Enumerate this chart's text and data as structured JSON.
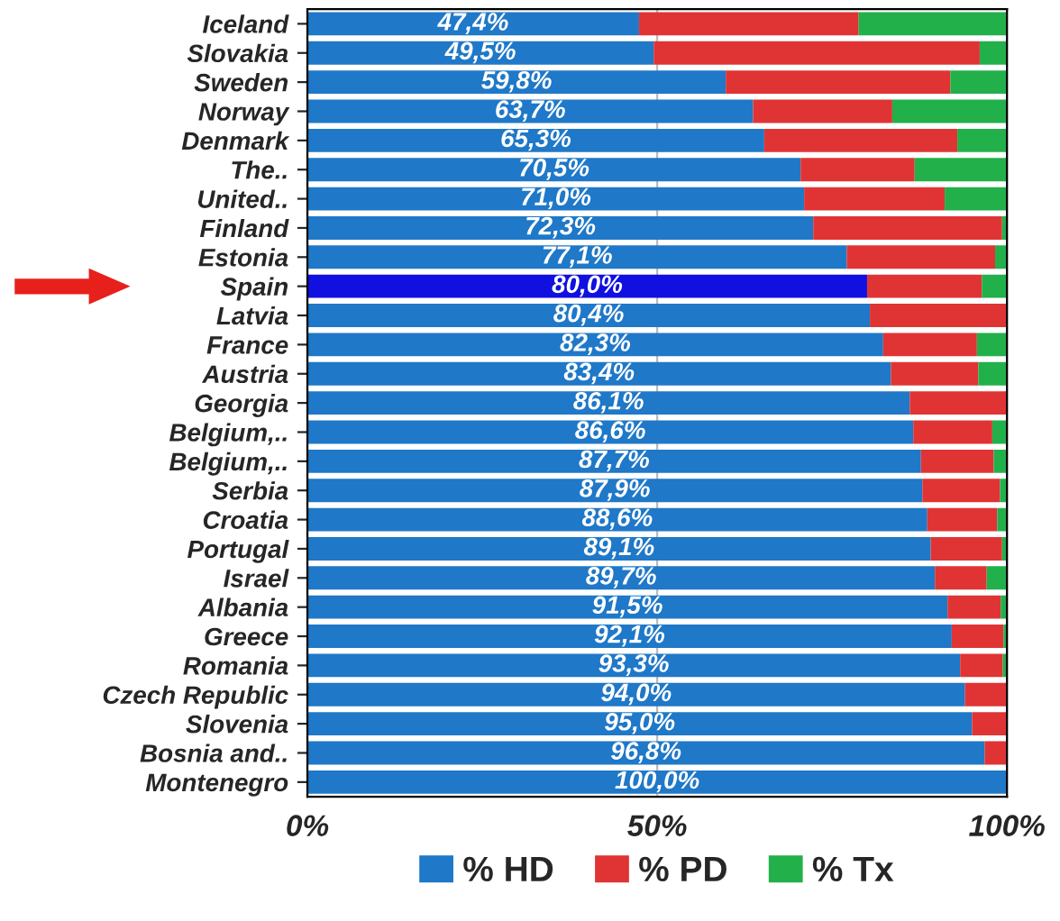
{
  "chart_data": {
    "type": "bar",
    "orientation": "horizontal",
    "stacked": true,
    "categories": [
      "Iceland",
      "Slovakia",
      "Sweden",
      "Norway",
      "Denmark",
      "The..",
      "United..",
      "Finland",
      "Estonia",
      "Spain",
      "Latvia",
      "France",
      "Austria",
      "Georgia",
      "Belgium,..",
      "Belgium,..",
      "Serbia",
      "Croatia",
      "Portugal",
      "Israel",
      "Albania",
      "Greece",
      "Romania",
      "Czech Republic",
      "Slovenia",
      "Bosnia and..",
      "Montenegro"
    ],
    "series": [
      {
        "name": "% HD",
        "color": "#1f78c8",
        "colors": [
          "#1f78c8",
          "#1f78c8",
          "#1f78c8",
          "#1f78c8",
          "#1f78c8",
          "#1f78c8",
          "#1f78c8",
          "#1f78c8",
          "#1f78c8",
          "#1010e0",
          "#1f78c8",
          "#1f78c8",
          "#1f78c8",
          "#1f78c8",
          "#1f78c8",
          "#1f78c8",
          "#1f78c8",
          "#1f78c8",
          "#1f78c8",
          "#1f78c8",
          "#1f78c8",
          "#1f78c8",
          "#1f78c8",
          "#1f78c8",
          "#1f78c8",
          "#1f78c8",
          "#1f78c8"
        ],
        "values": [
          47.4,
          49.5,
          59.8,
          63.7,
          65.3,
          70.5,
          71.0,
          72.3,
          77.1,
          80.0,
          80.4,
          82.3,
          83.4,
          86.1,
          86.6,
          87.7,
          87.9,
          88.6,
          89.1,
          89.7,
          91.5,
          92.1,
          93.3,
          94.0,
          95.0,
          96.8,
          100.0
        ],
        "value_labels": [
          "47,4%",
          "49,5%",
          "59,8%",
          "63,7%",
          "65,3%",
          "70,5%",
          "71,0%",
          "72,3%",
          "77,1%",
          "80,0%",
          "80,4%",
          "82,3%",
          "83,4%",
          "86,1%",
          "86,6%",
          "87,7%",
          "87,9%",
          "88,6%",
          "89,1%",
          "89,7%",
          "91,5%",
          "92,1%",
          "93,3%",
          "94,0%",
          "95,0%",
          "96,8%",
          "100,0%"
        ]
      },
      {
        "name": "% PD",
        "color": "#e03434",
        "values": [
          31.4,
          46.6,
          32.1,
          19.9,
          27.6,
          16.3,
          20.1,
          27.0,
          21.2,
          16.4,
          19.6,
          13.4,
          12.5,
          13.9,
          11.3,
          10.4,
          11.1,
          10.0,
          10.2,
          7.4,
          7.6,
          7.4,
          6.1,
          6.0,
          5.0,
          3.2,
          0
        ]
      },
      {
        "name": "% Tx",
        "color": "#22b04a",
        "values": [
          21.2,
          3.9,
          8.1,
          16.4,
          7.1,
          13.2,
          8.9,
          0.7,
          1.7,
          3.6,
          0,
          4.3,
          4.1,
          0,
          2.1,
          1.9,
          1.0,
          1.4,
          0.7,
          2.9,
          0.9,
          0.5,
          0.6,
          0,
          0,
          0,
          0
        ]
      }
    ],
    "xlim": [
      0,
      100
    ],
    "xticks": [
      {
        "value": 0,
        "label": "0%"
      },
      {
        "value": 50,
        "label": "50%"
      },
      {
        "value": 100,
        "label": "100%"
      }
    ],
    "grid": "x",
    "legend": "bottom"
  }
}
